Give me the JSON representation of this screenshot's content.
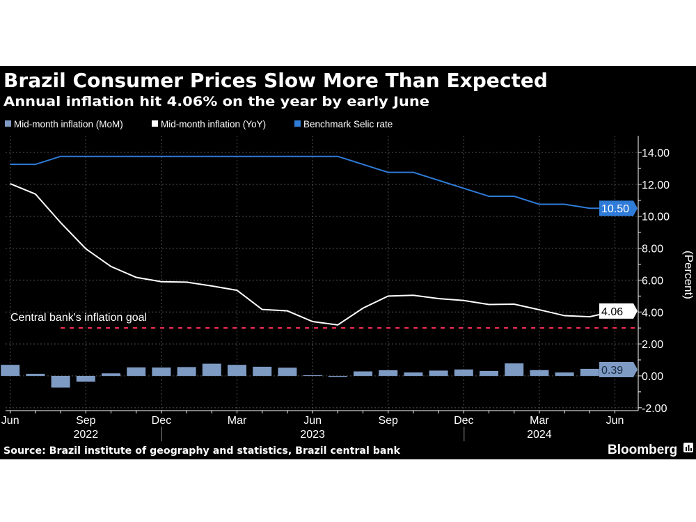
{
  "title": "Brazil Consumer Prices Slow More Than Expected",
  "subtitle": "Annual inflation hit 4.06% on the year by early June",
  "source": "Source: Brazil institute of geography and statistics, Brazil central bank",
  "brand": "Bloomberg",
  "colors": {
    "background": "#000000",
    "mom": "#7e9bc4",
    "yoy": "#ffffff",
    "selic": "#2f7bd8",
    "goal": "#e0284f",
    "grid": "#555555"
  },
  "chart_data": {
    "type": "bar+line",
    "ylabel": "(Percent)",
    "ylim": [
      -2.5,
      15
    ],
    "yticks": [
      "14.00",
      "12.00",
      "10.00",
      "8.00",
      "6.00",
      "4.00",
      "2.00",
      "0.00",
      "-2.00"
    ],
    "ytick_values": [
      14,
      12,
      10,
      8,
      6,
      4,
      2,
      0,
      -2
    ],
    "grid": true,
    "legend_position": "top-left",
    "x": [
      "2022-06",
      "2022-07",
      "2022-08",
      "2022-09",
      "2022-10",
      "2022-11",
      "2022-12",
      "2023-01",
      "2023-02",
      "2023-03",
      "2023-04",
      "2023-05",
      "2023-06",
      "2023-07",
      "2023-08",
      "2023-09",
      "2023-10",
      "2023-11",
      "2023-12",
      "2024-01",
      "2024-02",
      "2024-03",
      "2024-04",
      "2024-05",
      "2024-06"
    ],
    "xtick_labels": [
      {
        "month": "Jun",
        "x": "2022-06"
      },
      {
        "month": "Sep",
        "x": "2022-09"
      },
      {
        "month": "Dec",
        "x": "2022-12"
      },
      {
        "month": "Mar",
        "x": "2023-03"
      },
      {
        "month": "Jun",
        "x": "2023-06"
      },
      {
        "month": "Sep",
        "x": "2023-09"
      },
      {
        "month": "Dec",
        "x": "2023-12"
      },
      {
        "month": "Mar",
        "x": "2024-03"
      },
      {
        "month": "Jun",
        "x": "2024-06"
      }
    ],
    "year_labels": [
      {
        "year": "2022",
        "x": "2022-09"
      },
      {
        "year": "2023",
        "x": "2023-06"
      },
      {
        "year": "2024",
        "x": "2024-03"
      }
    ],
    "series": [
      {
        "name": "Mid-month inflation (MoM)",
        "type": "bar",
        "values": [
          0.69,
          0.13,
          -0.73,
          -0.37,
          0.16,
          0.53,
          0.52,
          0.55,
          0.76,
          0.69,
          0.57,
          0.51,
          0.04,
          -0.07,
          0.28,
          0.35,
          0.21,
          0.33,
          0.4,
          0.31,
          0.78,
          0.36,
          0.21,
          0.44,
          0.39
        ],
        "last_label": "0.39"
      },
      {
        "name": "Mid-month inflation (YoY)",
        "type": "line",
        "values": [
          12.04,
          11.39,
          9.6,
          7.96,
          6.85,
          6.17,
          5.9,
          5.87,
          5.63,
          5.36,
          4.16,
          4.07,
          3.4,
          3.19,
          4.24,
          5.0,
          5.05,
          4.84,
          4.72,
          4.47,
          4.49,
          4.14,
          3.77,
          3.7,
          4.06
        ],
        "last_label": "4.06"
      },
      {
        "name": "Benchmark Selic rate",
        "type": "line",
        "values": [
          13.25,
          13.25,
          13.75,
          13.75,
          13.75,
          13.75,
          13.75,
          13.75,
          13.75,
          13.75,
          13.75,
          13.75,
          13.75,
          13.75,
          13.25,
          12.75,
          12.75,
          12.25,
          11.75,
          11.25,
          11.25,
          10.75,
          10.75,
          10.5,
          10.5
        ],
        "last_label": "10.50"
      }
    ],
    "annotations": [
      {
        "text": "Central bank's inflation goal",
        "type": "hline",
        "y": 3.0,
        "from": "2022-08"
      }
    ]
  }
}
